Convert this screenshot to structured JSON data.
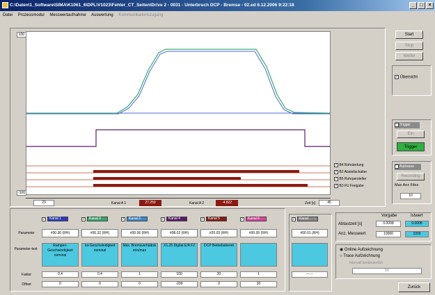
{
  "window": {
    "title": "C:\\Daten\\1_Software\\SIMA\\K1061_6\\DPL\\V1023\\Fehler_CT_Seiten\\Drive 2 - 0031 - Unterbruch DCP - Bremse - 02.ed   6.12.2006 9:22:18",
    "min": "_",
    "max": "□",
    "close": "×"
  },
  "menu": [
    {
      "label": "Datei"
    },
    {
      "label": "Prozessmodul"
    },
    {
      "label": "Messwertaufnahme"
    },
    {
      "label": "Auswertung"
    },
    {
      "label": "Kommunikationszugang"
    }
  ],
  "plot": {
    "y_top": "100",
    "y_bottom": "-100",
    "x_left": "23",
    "x_right": "45",
    "kanal_a_label": "Kanal A 1",
    "kanal_a_value": "27.259",
    "kanal_b_label": "Kanal A 2",
    "kanal_b_value": "-4.822",
    "zeit_label": "Zeit [s]",
    "colors": {
      "bg": "#ffffff",
      "green": "#3aa870",
      "blue": "#4a6ad0",
      "purple": "#5a1a6a",
      "dark_red": "#8a1a10",
      "line_red": "#c04020"
    }
  },
  "legend": [
    {
      "label": "B4 Rohrändung"
    },
    {
      "label": "B2 Abstellschalter"
    },
    {
      "label": "B5 Rohrpersteller"
    },
    {
      "label": "B3 FU Freigabe"
    }
  ],
  "right_panel": {
    "start": "Start",
    "stop": "Stop",
    "weiter": "Weiter",
    "uebersicht": "Übersicht",
    "trigger_chk": "Trigger",
    "ein": "Ein",
    "trigger_btn": "Trigger",
    "autosave_chk": "Autosave",
    "recording": "Recording",
    "max_anz_files": "Max Anz Files",
    "files_value": "10"
  },
  "channels": [
    {
      "name": "Kanal 1",
      "color": "#2a3ac0",
      "param": "#00.30 (RH)",
      "text": "Rampen-Geschwindigkeit nominal",
      "faktor": "0.4",
      "offset": "0"
    },
    {
      "name": "Kanal 2",
      "color": "#3aa870",
      "param": "#00.32 (RH)",
      "text": "Ist-Geschwindigkeit nominal",
      "faktor": "0.4",
      "offset": "0"
    },
    {
      "name": "Kanal 3",
      "color": "#3a8ad0",
      "param": "#00.06 (RH)",
      "text": "Max. Bremsverhältnis min/max",
      "faktor": "1",
      "offset": "0"
    },
    {
      "name": "Kanal 4",
      "color": "#5a1a6a",
      "param": "#08.02 (RH)",
      "text": "X1.25 Digital E/A F2",
      "faktor": "100",
      "offset": "-200"
    },
    {
      "name": "Kanal 5",
      "color": "#8a1a10",
      "param": "#20.03 (RH)",
      "text": "DCP Betriebsbereit",
      "faktor": "20",
      "offset": "0"
    },
    {
      "name": "Kanal 6",
      "color": "#e040a0",
      "param": "#00.00 (RH)",
      "text": "",
      "faktor": "1",
      "offset": "20"
    }
  ],
  "extra_channel": {
    "name": "Kanal",
    "param": "#00.01 (RH)",
    "faktor": "---.--"
  },
  "row_labels": {
    "parameter": "Parameter",
    "parametertext": "Parameter-text",
    "faktor": "Faktor",
    "offset": "Offset"
  },
  "settings": {
    "vorgabe": "Vorgabe",
    "istwert": "Istwert",
    "abtastzeit_label": "Abtastzeit [s]",
    "abtastzeit_vorgabe": "0.0008",
    "abtastzeit_ist": "0.0008",
    "anz_messwert_label": "Anz. Messwert",
    "anz_vorgabe": "10000",
    "anz_ist": "1000",
    "online": "Online Aufzeichnung",
    "trace": "Trace Aufzeichnung",
    "trace_sub": "Intervall kontinuierlich",
    "trace_value": "50"
  },
  "zurueck": "Zurück"
}
